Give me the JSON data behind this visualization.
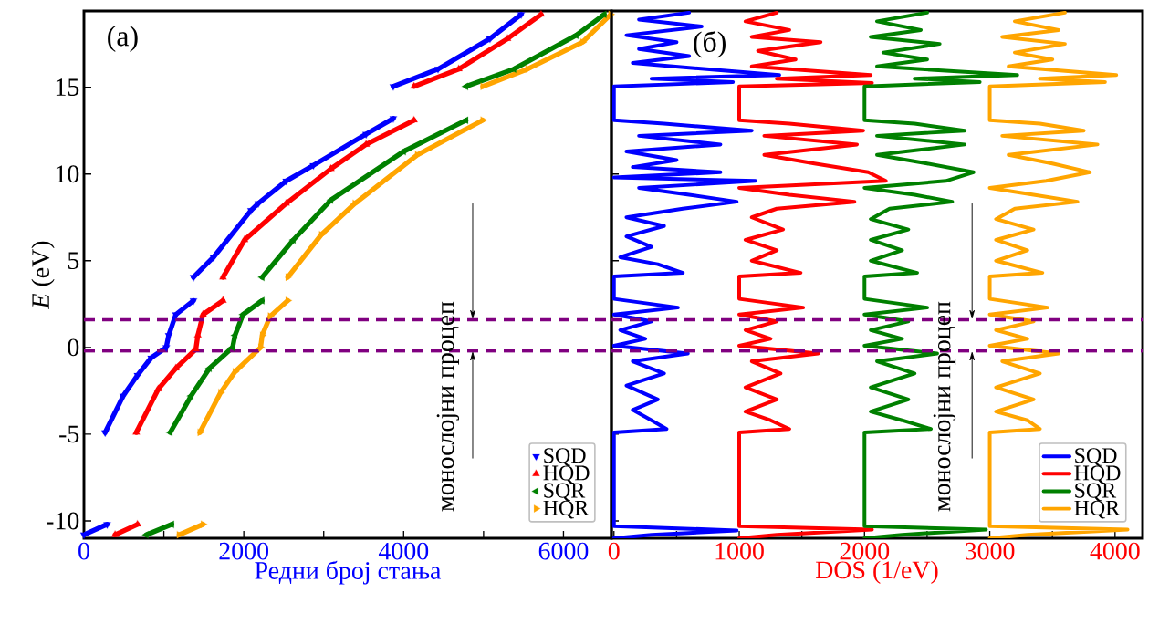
{
  "chart_data": [
    {
      "type": "line",
      "title": "(a)",
      "xlabel": "Редни број стања",
      "ylabel": "*E* (eV)",
      "xlim": [
        0,
        6600
      ],
      "ylim": [
        -11,
        19.4
      ],
      "xticks": [
        0,
        {
          "value": 1000,
          "label": null
        },
        2000,
        {
          "value": 3000,
          "label": null
        },
        4000,
        {
          "value": 5000,
          "label": null
        },
        6000
      ],
      "yticks": [
        -10,
        -5,
        0,
        5,
        10,
        15
      ],
      "marker": "triangle",
      "legend": "bottom right",
      "ref_lines": [
        {
          "axis": "y",
          "value": 1.6,
          "color": "#800080",
          "line_style": "dashed"
        },
        {
          "axis": "y",
          "value": -0.2,
          "color": "#800080",
          "line_style": "dashed"
        }
      ],
      "annotations": [
        "монослојни процеп"
      ],
      "series": [
        {
          "name": "SQD",
          "color": "#0000ff",
          "x": [
            0,
            290,
            null,
            265,
            490,
            670,
            840,
            1030,
            1060,
            1150,
            1370,
            null,
            1370,
            1620,
            2090,
            2180,
            2530,
            2870,
            3530,
            3870,
            null,
            3870,
            4430,
            5080,
            5470
          ],
          "values": [
            -10.8,
            -10.2,
            null,
            -4.9,
            -2.8,
            -1.6,
            -0.6,
            0,
            0.7,
            1.9,
            2.7,
            null,
            4.05,
            5.2,
            7.9,
            8.3,
            9.6,
            10.5,
            12.3,
            13.2,
            null,
            15.05,
            16.05,
            17.8,
            19.2
          ]
        },
        {
          "name": "HQD",
          "color": "#ff0000",
          "x": [
            390,
            670,
            null,
            655,
            930,
            1150,
            1400,
            1425,
            1490,
            1740,
            null,
            1740,
            2010,
            2530,
            3090,
            3530,
            4130,
            null,
            4130,
            4690,
            5300,
            5720
          ],
          "values": [
            -10.8,
            -10.2,
            null,
            -4.9,
            -2.4,
            -1.2,
            -0.1,
            0.7,
            1.9,
            2.7,
            null,
            4.05,
            6.2,
            8.3,
            10.3,
            11.7,
            13.1,
            null,
            15.05,
            16.05,
            17.8,
            19.2
          ]
        },
        {
          "name": "SQR",
          "color": "#008000",
          "x": [
            780,
            1100,
            null,
            1080,
            1340,
            1570,
            1860,
            1890,
            1990,
            2230,
            null,
            2230,
            2620,
            3090,
            4000,
            4780,
            null,
            4780,
            5380,
            6160,
            6510
          ],
          "values": [
            -10.8,
            -10.2,
            null,
            -4.9,
            -2.8,
            -1.2,
            0,
            0.7,
            1.9,
            2.7,
            null,
            4.05,
            6.2,
            8.5,
            11.3,
            13.1,
            null,
            15.05,
            16.05,
            18.0,
            19.2
          ]
        },
        {
          "name": "HQR",
          "color": "#ffa500",
          "x": [
            1190,
            1490,
            null,
            1450,
            1710,
            1890,
            2210,
            2230,
            2330,
            2550,
            null,
            2550,
            2970,
            3390,
            4170,
            4990,
            null,
            4990,
            5550,
            6240,
            6590
          ],
          "values": [
            -10.8,
            -10.2,
            null,
            -4.9,
            -2.6,
            -1.4,
            0,
            0.7,
            1.8,
            2.7,
            null,
            4.05,
            6.5,
            8.3,
            11.1,
            13.1,
            null,
            15.05,
            16.05,
            17.6,
            19.2
          ]
        }
      ]
    },
    {
      "type": "line",
      "title": "(б)",
      "xlabel": "DOS (1/eV)",
      "xlim": [
        -20,
        4220
      ],
      "ylim": [
        -11,
        19.4
      ],
      "xticks": [
        0,
        {
          "value": 500,
          "label": null
        },
        1000,
        {
          "value": 1500,
          "label": null
        },
        2000,
        {
          "value": 2500,
          "label": null
        },
        3000,
        {
          "value": 3500,
          "label": null
        },
        4000
      ],
      "yticks": [
        -10,
        -5,
        0,
        5,
        10,
        15
      ],
      "tick_labels": "x",
      "legend": "bottom right",
      "ref_lines": [
        {
          "axis": "y",
          "value": 1.6,
          "color": "#800080",
          "line_style": "dashed"
        },
        {
          "axis": "y",
          "value": -0.2,
          "color": "#800080",
          "line_style": "dashed"
        }
      ],
      "annotations": [
        "монослојни процеп"
      ],
      "series": [
        {
          "name": "SQD",
          "color": "#0000ff",
          "x": [
            600,
            200,
            700,
            100,
            500,
            200,
            600,
            150,
            1320,
            300,
            950,
            0,
            0,
            400,
            1100,
            200,
            850,
            100,
            500,
            150,
            850,
            0,
            1130,
            200,
            600,
            980,
            550,
            100,
            400,
            100,
            300,
            50,
            350,
            550,
            0,
            0,
            510,
            0,
            300,
            50,
            250,
            0,
            590,
            150,
            400,
            100,
            350,
            150,
            300,
            420,
            0,
            0,
            980,
            300,
            0
          ],
          "values": [
            19.3,
            18.9,
            18.5,
            18.0,
            17.6,
            17.2,
            16.8,
            16.4,
            15.7,
            15.5,
            15.3,
            15.05,
            13.1,
            12.9,
            12.5,
            12.2,
            11.7,
            11.3,
            10.8,
            10.4,
            10.1,
            9.8,
            9.6,
            9.2,
            8.8,
            8.4,
            8.0,
            7.5,
            7.0,
            6.4,
            5.8,
            5.2,
            4.8,
            4.3,
            4.1,
            2.8,
            2.3,
            1.9,
            1.5,
            1.0,
            0.5,
            0.1,
            -0.35,
            -0.8,
            -1.5,
            -2.2,
            -3.0,
            -3.6,
            -4.2,
            -4.7,
            -4.9,
            -10.3,
            -10.55,
            -10.8,
            -11.0
          ]
        },
        {
          "name": "HQD",
          "color": "#ff0000",
          "x": [
            1300,
            1050,
            1400,
            1100,
            1650,
            1150,
            1450,
            1100,
            2050,
            1300,
            2060,
            1000,
            1000,
            1400,
            1990,
            1200,
            1940,
            1200,
            1600,
            2030,
            2170,
            1000,
            1400,
            1920,
            1300,
            1100,
            1350,
            1050,
            1300,
            1100,
            1490,
            1000,
            1000,
            1510,
            1000,
            1300,
            1050,
            1250,
            1000,
            1630,
            1100,
            1330,
            1050,
            1300,
            1050,
            1250,
            1400,
            1000,
            1000,
            2060,
            1300,
            1000
          ],
          "values": [
            19.3,
            18.8,
            18.3,
            17.9,
            17.6,
            17.1,
            16.6,
            16.2,
            15.7,
            15.5,
            15.25,
            15.05,
            13.1,
            12.9,
            12.5,
            12.2,
            11.7,
            11.1,
            10.6,
            10.1,
            9.6,
            9.2,
            8.8,
            8.4,
            8.0,
            7.5,
            6.8,
            6.2,
            5.6,
            5.0,
            4.3,
            4.1,
            2.8,
            2.3,
            1.9,
            1.5,
            1.0,
            0.5,
            0.1,
            -0.35,
            -0.8,
            -1.5,
            -2.3,
            -3.0,
            -3.7,
            -4.2,
            -4.7,
            -4.9,
            -10.3,
            -10.5,
            -10.8,
            -11.0
          ]
        },
        {
          "name": "SQR",
          "color": "#008000",
          "x": [
            2500,
            2100,
            2450,
            2050,
            2600,
            2150,
            2500,
            2100,
            3220,
            2400,
            2920,
            2000,
            2000,
            2400,
            2800,
            2100,
            2800,
            2100,
            2500,
            2870,
            2650,
            2000,
            2400,
            2700,
            2200,
            2050,
            2350,
            2050,
            2300,
            2050,
            2420,
            2000,
            2000,
            2500,
            2000,
            2350,
            2050,
            2300,
            2000,
            2580,
            2100,
            2400,
            2050,
            2350,
            2050,
            2300,
            2530,
            2000,
            2000,
            2970,
            2300,
            2000
          ],
          "values": [
            19.3,
            18.8,
            18.3,
            17.9,
            17.5,
            17.0,
            16.6,
            16.2,
            15.7,
            15.5,
            15.3,
            15.05,
            13.1,
            12.9,
            12.5,
            12.2,
            11.7,
            11.1,
            10.6,
            10.1,
            9.6,
            9.2,
            8.8,
            8.4,
            8.0,
            7.4,
            6.8,
            6.2,
            5.6,
            5.0,
            4.3,
            4.1,
            2.8,
            2.3,
            1.9,
            1.5,
            1.0,
            0.5,
            0.1,
            -0.35,
            -0.8,
            -1.5,
            -2.3,
            -3.0,
            -3.7,
            -4.2,
            -4.7,
            -4.9,
            -10.3,
            -10.5,
            -10.8,
            -11.0
          ]
        },
        {
          "name": "HQR",
          "color": "#ffa500",
          "x": [
            3600,
            3200,
            3550,
            3100,
            3600,
            3200,
            3500,
            3150,
            4010,
            3400,
            3920,
            3000,
            3000,
            3400,
            3750,
            3100,
            3860,
            3150,
            3500,
            3800,
            3450,
            3000,
            3350,
            3700,
            3200,
            3050,
            3350,
            3050,
            3300,
            3050,
            3420,
            3000,
            3000,
            3460,
            3000,
            3350,
            3050,
            3300,
            3000,
            3550,
            3100,
            3400,
            3050,
            3350,
            3050,
            3300,
            3400,
            3000,
            3000,
            4100,
            3300,
            3000
          ],
          "values": [
            19.3,
            18.8,
            18.3,
            17.9,
            17.5,
            17.0,
            16.6,
            16.2,
            15.7,
            15.5,
            15.3,
            15.05,
            13.1,
            12.9,
            12.5,
            12.2,
            11.7,
            11.1,
            10.6,
            10.1,
            9.6,
            9.2,
            8.8,
            8.4,
            8.0,
            7.4,
            6.8,
            6.2,
            5.6,
            5.0,
            4.3,
            4.1,
            2.8,
            2.3,
            1.9,
            1.5,
            1.0,
            0.5,
            0.1,
            -0.35,
            -0.8,
            -1.5,
            -2.3,
            -3.0,
            -3.7,
            -4.2,
            -4.7,
            -4.9,
            -10.3,
            -10.5,
            -10.8,
            -11.0
          ]
        }
      ]
    }
  ]
}
